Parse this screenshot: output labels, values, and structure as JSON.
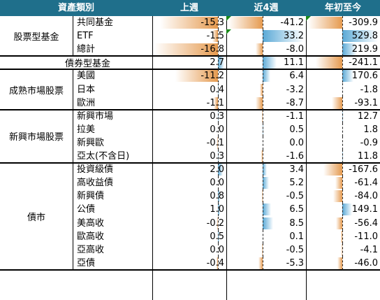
{
  "colors": {
    "header_bg": "#1f6f8b",
    "header_text": "#ffffff",
    "neg_bar": "#e59a4f",
    "pos_bar": "#5aa9d6",
    "flag": "#1a8a1a"
  },
  "header": {
    "category": "資產類別",
    "col1": "上週",
    "col2": "近4週",
    "col3": "年初至今"
  },
  "groups": [
    {
      "name": "股票型基金",
      "rows": [
        {
          "label": "共同基金",
          "v": [
            "-15.3",
            "-41.2",
            "-309.9"
          ],
          "flag": [
            false,
            true,
            true
          ]
        },
        {
          "label": "ETF",
          "v": [
            "-1.5",
            "33.2",
            "529.8"
          ],
          "flag": [
            false,
            true,
            false
          ]
        },
        {
          "label": "總計",
          "v": [
            "-16.8",
            "-8.0",
            "219.9"
          ]
        }
      ]
    },
    {
      "name": "債券型基金",
      "rows": [
        {
          "label": "",
          "v": [
            "2.7",
            "11.1",
            "-241.1"
          ]
        }
      ]
    },
    {
      "name": "成熟市場股票",
      "rows": [
        {
          "label": "美國",
          "v": [
            "-11.2",
            "6.4",
            "170.6"
          ]
        },
        {
          "label": "日本",
          "v": [
            "0.4",
            "-3.2",
            "-1.8"
          ]
        },
        {
          "label": "歐洲",
          "v": [
            "-1.1",
            "-8.7",
            "-93.1"
          ]
        }
      ]
    },
    {
      "name": "新興市場股票",
      "rows": [
        {
          "label": "新興市場",
          "v": [
            "0.3",
            "-1.1",
            "12.7"
          ]
        },
        {
          "label": "拉美",
          "v": [
            "0.0",
            "0.5",
            "1.8"
          ]
        },
        {
          "label": "新興歐",
          "v": [
            "-0.1",
            "0.0",
            "-0.9"
          ]
        },
        {
          "label": "亞太(不含日)",
          "v": [
            "0.3",
            "-1.6",
            "11.8"
          ]
        }
      ]
    },
    {
      "name": "債市",
      "rows": [
        {
          "label": "投資級債",
          "v": [
            "2.0",
            "3.4",
            "-167.6"
          ]
        },
        {
          "label": "高收益債",
          "v": [
            "0.0",
            "5.2",
            "-61.4"
          ]
        },
        {
          "label": "新興債",
          "v": [
            "0.8",
            "-0.5",
            "-84.0"
          ]
        },
        {
          "label": "公債",
          "v": [
            "1.0",
            "6.5",
            "149.1"
          ]
        },
        {
          "label": "美高收",
          "v": [
            "-0.2",
            "8.5",
            "-56.4"
          ]
        },
        {
          "label": "歐高收",
          "v": [
            "0.5",
            "0.1",
            "-11.0"
          ]
        },
        {
          "label": "亞高收",
          "v": [
            "0.0",
            "-0.5",
            "-4.1"
          ]
        },
        {
          "label": "亞債",
          "v": [
            "-0.4",
            "-5.3",
            "-46.0"
          ]
        }
      ]
    }
  ]
}
